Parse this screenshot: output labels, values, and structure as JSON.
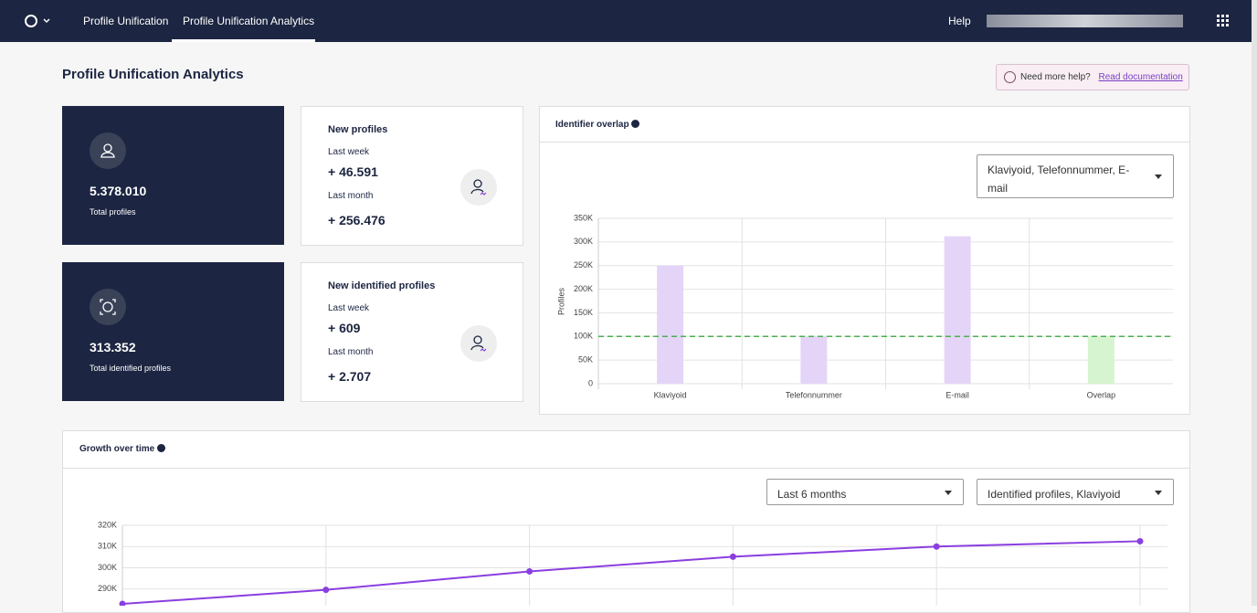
{
  "nav": {
    "items": [
      "Profile Unification",
      "Profile Unification Analytics"
    ],
    "help": "Help"
  },
  "page_title": "Profile Unification Analytics",
  "help_box": {
    "text": "Need more help?",
    "link": "Read documentation"
  },
  "cards": [
    {
      "value": "5.378.010",
      "label": "Total profiles"
    },
    {
      "value": "313.352",
      "label": "Total identified profiles"
    }
  ],
  "stats": [
    {
      "title": "New profiles",
      "rows": [
        {
          "label": "Last week",
          "value": "+ 46.591"
        },
        {
          "label": "Last month",
          "value": "+ 256.476"
        }
      ]
    },
    {
      "title": "New identified profiles",
      "rows": [
        {
          "label": "Last week",
          "value": "+ 609"
        },
        {
          "label": "Last month",
          "value": "+ 2.707"
        }
      ]
    }
  ],
  "overlap": {
    "title": "Identifier overlap",
    "select": "Klaviyoid, Telefonnummer, E-mail"
  },
  "growth": {
    "title": "Growth over time",
    "selects": [
      "Last 6 months",
      "Identified profiles, Klaviyoid"
    ]
  },
  "chart_data": [
    {
      "type": "bar",
      "y_label": "Profiles",
      "categories": [
        "Klaviyoid",
        "Telefonnummer",
        "E-mail",
        "Overlap"
      ],
      "values": [
        250000,
        100000,
        312000,
        100000
      ],
      "colors": [
        "#e4d5f8",
        "#e4d5f8",
        "#e4d5f8",
        "#d6f4cf"
      ],
      "reference_line": 100000,
      "reference_color": "#4caf50",
      "ylim": [
        0,
        350000
      ],
      "yticks": [
        0,
        {
          "value": 50000,
          "label": "50K"
        },
        {
          "value": 100000,
          "label": "100K"
        },
        {
          "value": 150000,
          "label": "150K"
        },
        {
          "value": 200000,
          "label": "200K"
        },
        {
          "value": 250000,
          "label": "250K"
        },
        {
          "value": 300000,
          "label": "300K"
        },
        {
          "value": 350000,
          "label": "350K"
        }
      ],
      "grid": true
    },
    {
      "type": "line",
      "categories": [
        null,
        null,
        null,
        null,
        null,
        null
      ],
      "values": [
        283000,
        289600,
        298300,
        305200,
        310000,
        312500
      ],
      "color": "#8a3ee0",
      "ylim": [
        280000,
        320000
      ],
      "yticks": [
        {
          "value": 290000,
          "label": "290K"
        },
        {
          "value": 300000,
          "label": "300K"
        },
        {
          "value": 310000,
          "label": "310K"
        },
        {
          "value": 320000,
          "label": "320K"
        }
      ],
      "grid": true
    }
  ]
}
